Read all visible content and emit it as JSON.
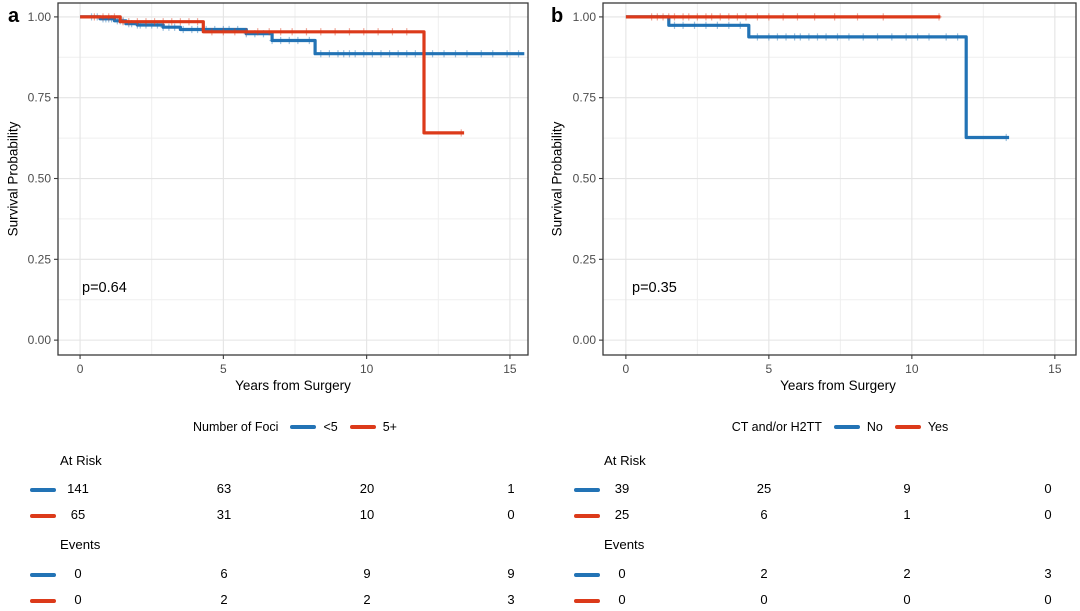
{
  "colors": {
    "blue": "#2273B5",
    "red": "#DC3A1A",
    "grid_major": "#E4E4E4",
    "grid_minor": "#EFEFEF",
    "panel_border": "#3A3A3A",
    "axis_text": "#4D4D4D"
  },
  "panels": [
    {
      "letter": "a",
      "ylabel": "Survival Probability",
      "xlabel": "Years from Surgery",
      "p_value": "p=0.64",
      "legend_title": "Number of Foci",
      "table": {
        "at_risk_label": "At Risk",
        "events_label": "Events",
        "at_risk": [
          [
            "141",
            "63",
            "20",
            "1"
          ],
          [
            "65",
            "31",
            "10",
            "0"
          ]
        ],
        "events": [
          [
            "0",
            "6",
            "9",
            "9"
          ],
          [
            "0",
            "2",
            "2",
            "3"
          ]
        ]
      }
    },
    {
      "letter": "b",
      "ylabel": "Survival Probability",
      "xlabel": "Years from Surgery",
      "p_value": "p=0.35",
      "legend_title": "CT and/or H2TT",
      "table": {
        "at_risk_label": "At Risk",
        "events_label": "Events",
        "at_risk": [
          [
            "39",
            "25",
            "9",
            "0"
          ],
          [
            "25",
            "6",
            "1",
            "0"
          ]
        ],
        "events": [
          [
            "0",
            "2",
            "2",
            "3"
          ],
          [
            "0",
            "0",
            "0",
            "0"
          ]
        ]
      }
    }
  ],
  "chart_data": [
    {
      "type": "line",
      "subtype": "kaplan-meier-step",
      "panel": "a",
      "xlabel": "Years from Surgery",
      "ylabel": "Survival Probability",
      "xlim": [
        -0.77,
        15.63
      ],
      "ylim": [
        -0.046,
        1.043
      ],
      "x_tick_values": [
        0,
        5,
        10,
        15
      ],
      "x_tick_labels": [
        "0",
        "5",
        "10",
        "15"
      ],
      "y_tick_values": [
        0,
        0.25,
        0.5,
        0.75,
        1
      ],
      "y_tick_labels": [
        "0.00",
        "0.25",
        "0.50",
        "0.75",
        "1.00"
      ],
      "x_minor": [
        2.5,
        7.5,
        12.5
      ],
      "y_minor": [
        0.125,
        0.375,
        0.625,
        0.875
      ],
      "grid": true,
      "legend_position": "bottom",
      "annotation": {
        "text": "p=0.64",
        "x": 0.3,
        "y": 0.15
      },
      "series": [
        {
          "name": "<5",
          "color": "#2273B5",
          "steps": [
            [
              0,
              1.0
            ],
            [
              0.7,
              0.994
            ],
            [
              1.2,
              0.988
            ],
            [
              1.6,
              0.979
            ],
            [
              2.0,
              0.975
            ],
            [
              2.9,
              0.968
            ],
            [
              3.5,
              0.961
            ],
            [
              5.8,
              0.948
            ],
            [
              6.7,
              0.927
            ],
            [
              8.2,
              0.886
            ],
            [
              15.5,
              0.886
            ]
          ],
          "censor_x": [
            0.4,
            0.6,
            0.8,
            0.9,
            1.0,
            1.1,
            1.3,
            1.4,
            1.5,
            1.7,
            1.8,
            2.0,
            2.1,
            2.3,
            2.5,
            2.7,
            2.9,
            3.1,
            3.3,
            3.6,
            3.9,
            4.1,
            4.4,
            4.7,
            5.0,
            5.2,
            5.5,
            5.8,
            6.1,
            6.4,
            6.7,
            7.0,
            7.3,
            7.6,
            8.0,
            8.4,
            8.7,
            9.0,
            9.2,
            9.4,
            9.6,
            9.9,
            10.2,
            10.5,
            10.8,
            11.1,
            11.4,
            11.7,
            12.0,
            12.3,
            12.7,
            13.1,
            13.5,
            14.0,
            14.4,
            14.9,
            15.3
          ]
        },
        {
          "name": "5+",
          "color": "#DC3A1A",
          "steps": [
            [
              0,
              1.0
            ],
            [
              1.4,
              0.985
            ],
            [
              4.3,
              0.954
            ],
            [
              12.0,
              0.641
            ],
            [
              13.4,
              0.641
            ]
          ],
          "censor_x": [
            0.5,
            0.8,
            1.0,
            1.2,
            1.5,
            1.7,
            2.0,
            2.3,
            2.6,
            2.9,
            3.2,
            3.5,
            3.8,
            4.1,
            4.6,
            5.0,
            5.4,
            5.8,
            6.2,
            6.6,
            7.0,
            7.4,
            7.9,
            8.4,
            8.9,
            9.4,
            9.9,
            10.4,
            10.9,
            11.4,
            13.3
          ]
        }
      ]
    },
    {
      "type": "line",
      "subtype": "kaplan-meier-step",
      "panel": "b",
      "xlabel": "Years from Surgery",
      "ylabel": "Survival Probability",
      "xlim": [
        -0.8,
        15.74
      ],
      "ylim": [
        -0.046,
        1.043
      ],
      "x_tick_values": [
        0,
        5,
        10,
        15
      ],
      "x_tick_labels": [
        "0",
        "5",
        "10",
        "15"
      ],
      "y_tick_values": [
        0,
        0.25,
        0.5,
        0.75,
        1
      ],
      "y_tick_labels": [
        "0.00",
        "0.25",
        "0.50",
        "0.75",
        "1.00"
      ],
      "x_minor": [
        2.5,
        7.5,
        12.5
      ],
      "y_minor": [
        0.125,
        0.375,
        0.625,
        0.875
      ],
      "grid": true,
      "legend_position": "bottom",
      "annotation": {
        "text": "p=0.35",
        "x": 0.3,
        "y": 0.15
      },
      "series": [
        {
          "name": "No",
          "color": "#2273B5",
          "steps": [
            [
              0,
              1.0
            ],
            [
              1.5,
              0.974
            ],
            [
              4.3,
              0.938
            ],
            [
              11.9,
              0.627
            ],
            [
              13.4,
              0.627
            ]
          ],
          "censor_x": [
            1.7,
            2.0,
            2.4,
            2.8,
            3.2,
            3.6,
            4.0,
            4.6,
            5.0,
            5.3,
            5.6,
            5.9,
            6.1,
            6.4,
            6.7,
            7.0,
            7.4,
            7.8,
            8.3,
            8.8,
            9.3,
            9.8,
            10.2,
            10.6,
            11.2,
            11.6,
            13.3
          ]
        },
        {
          "name": "Yes",
          "color": "#DC3A1A",
          "steps": [
            [
              0,
              1.0
            ],
            [
              11.0,
              1.0
            ]
          ],
          "censor_x": [
            0.9,
            1.1,
            1.3,
            1.5,
            1.7,
            2.0,
            2.2,
            2.5,
            2.8,
            3.0,
            3.3,
            3.6,
            3.9,
            4.2,
            4.6,
            5.0,
            5.5,
            6.0,
            6.6,
            7.3,
            8.1,
            9.0,
            10.95
          ]
        }
      ]
    }
  ]
}
